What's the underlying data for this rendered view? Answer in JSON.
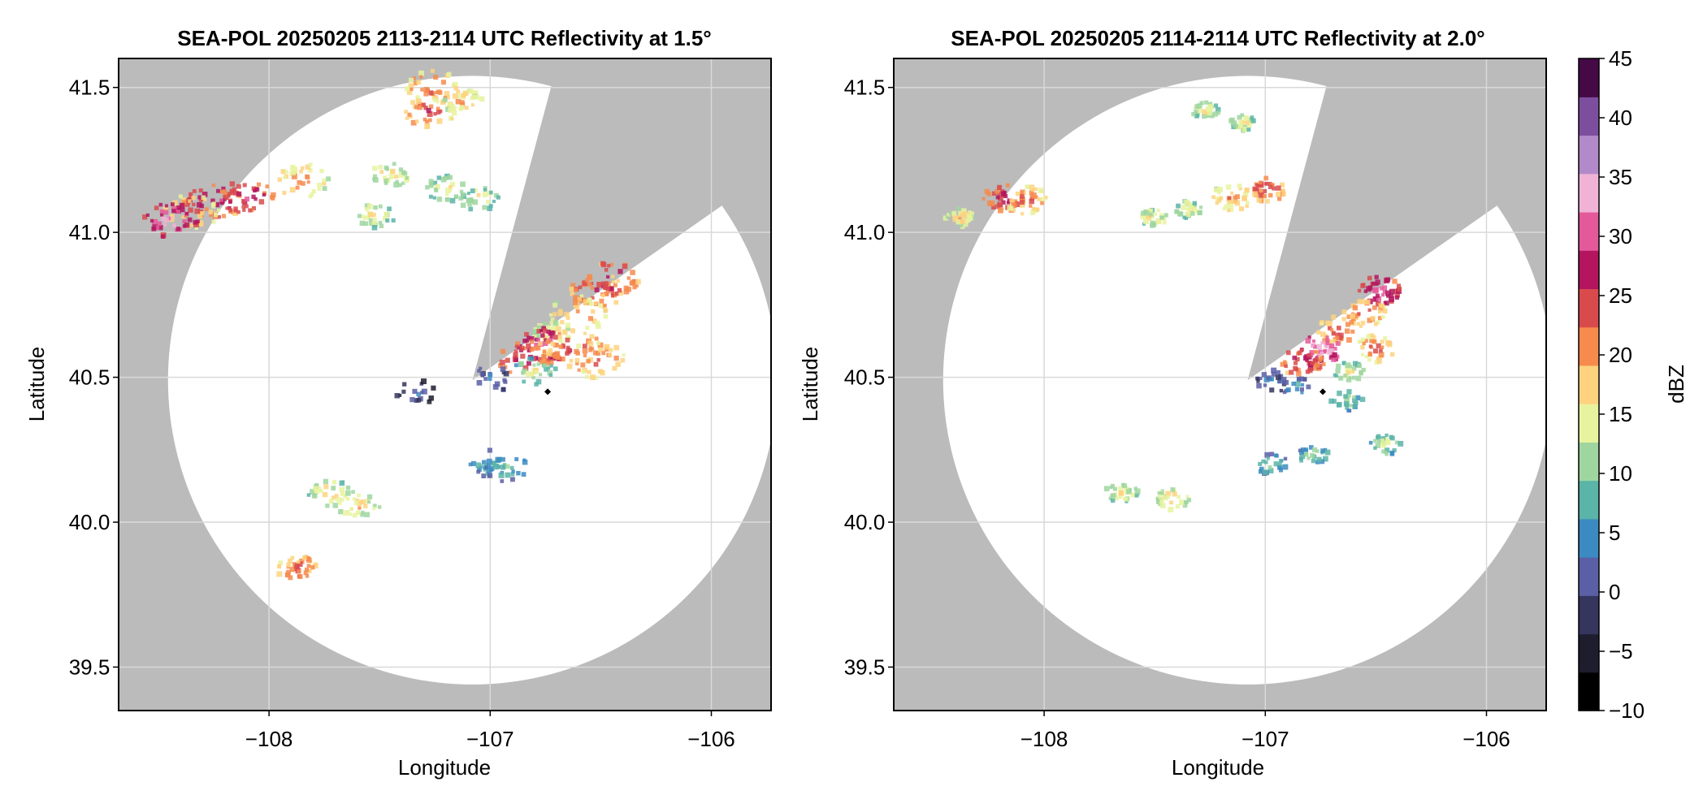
{
  "colors": {
    "background_mask": "#bbbbbb",
    "coverage": "#ffffff",
    "grid": "#d9d9d9",
    "site_marker": "#000000"
  },
  "chart_data": [
    {
      "type": "heatmap",
      "title": "SEA-POL 20250205 2113-2114 UTC Reflectivity at 1.5°",
      "xlabel": "Longitude",
      "ylabel": "Latitude",
      "xlim": [
        -108.68,
        -105.73
      ],
      "ylim": [
        39.35,
        41.6
      ],
      "xticks": [
        -108,
        -107,
        -106
      ],
      "xtick_labels": [
        "−108",
        "−107",
        "−106"
      ],
      "yticks": [
        39.5,
        40.0,
        40.5,
        41.0,
        41.5
      ],
      "ytick_labels": [
        "39.5",
        "40.0",
        "40.5",
        "41.0",
        "41.5"
      ],
      "grid": true,
      "radar_coverage": {
        "center": [
          -107.08,
          40.49
        ],
        "radius_lat": 1.05,
        "blanked_sector_bearings": [
          15,
          55
        ]
      },
      "site_marker": [
        -106.74,
        40.45
      ],
      "echoes": [
        {
          "lon": -107.27,
          "lat": 41.42,
          "dbz": 25
        },
        {
          "lon": -107.26,
          "lat": 41.5,
          "dbz": 24
        },
        {
          "lon": -107.12,
          "lat": 41.45,
          "dbz": 20
        },
        {
          "lon": -107.45,
          "lat": 41.2,
          "dbz": 18
        },
        {
          "lon": -107.2,
          "lat": 41.15,
          "dbz": 17
        },
        {
          "lon": -107.05,
          "lat": 41.12,
          "dbz": 16
        },
        {
          "lon": -107.52,
          "lat": 41.06,
          "dbz": 17
        },
        {
          "lon": -107.85,
          "lat": 41.18,
          "dbz": 22
        },
        {
          "lon": -108.25,
          "lat": 41.11,
          "dbz": 31
        },
        {
          "lon": -108.1,
          "lat": 41.12,
          "dbz": 29
        },
        {
          "lon": -108.35,
          "lat": 41.07,
          "dbz": 23
        },
        {
          "lon": -108.44,
          "lat": 41.04,
          "dbz": 34
        },
        {
          "lon": -106.52,
          "lat": 40.8,
          "dbz": 27
        },
        {
          "lon": -106.45,
          "lat": 40.84,
          "dbz": 28
        },
        {
          "lon": -106.6,
          "lat": 40.72,
          "dbz": 22
        },
        {
          "lon": -106.72,
          "lat": 40.65,
          "dbz": 19
        },
        {
          "lon": -106.75,
          "lat": 40.61,
          "dbz": 32
        },
        {
          "lon": -106.85,
          "lat": 40.57,
          "dbz": 27
        },
        {
          "lon": -106.62,
          "lat": 40.6,
          "dbz": 26
        },
        {
          "lon": -106.52,
          "lat": 40.56,
          "dbz": 24
        },
        {
          "lon": -106.8,
          "lat": 40.52,
          "dbz": 15
        },
        {
          "lon": -106.98,
          "lat": 40.5,
          "dbz": 6
        },
        {
          "lon": -107.33,
          "lat": 40.45,
          "dbz": 3
        },
        {
          "lon": -106.99,
          "lat": 40.2,
          "dbz": 10
        },
        {
          "lon": -106.93,
          "lat": 40.19,
          "dbz": 11
        },
        {
          "lon": -107.72,
          "lat": 40.1,
          "dbz": 18
        },
        {
          "lon": -107.6,
          "lat": 40.06,
          "dbz": 19
        },
        {
          "lon": -107.87,
          "lat": 39.84,
          "dbz": 25
        }
      ]
    },
    {
      "type": "heatmap",
      "title": "SEA-POL 20250205 2114-2114 UTC Reflectivity at 2.0°",
      "xlabel": "Longitude",
      "ylabel": "Latitude",
      "xlim": [
        -108.68,
        -105.73
      ],
      "ylim": [
        39.35,
        41.6
      ],
      "xticks": [
        -108,
        -107,
        -106
      ],
      "xtick_labels": [
        "−108",
        "−107",
        "−106"
      ],
      "yticks": [
        39.5,
        40.0,
        40.5,
        41.0,
        41.5
      ],
      "ytick_labels": [
        "39.5",
        "40.0",
        "40.5",
        "41.0",
        "41.5"
      ],
      "grid": true,
      "radar_coverage": {
        "center": [
          -107.08,
          40.49
        ],
        "radius_lat": 1.05,
        "blanked_sector_bearings": [
          15,
          55
        ]
      },
      "site_marker": [
        -106.74,
        40.45
      ],
      "echoes": [
        {
          "lon": -107.27,
          "lat": 41.42,
          "dbz": 18
        },
        {
          "lon": -107.1,
          "lat": 41.38,
          "dbz": 17
        },
        {
          "lon": -107.0,
          "lat": 41.15,
          "dbz": 26
        },
        {
          "lon": -107.15,
          "lat": 41.12,
          "dbz": 22
        },
        {
          "lon": -107.35,
          "lat": 41.08,
          "dbz": 17
        },
        {
          "lon": -107.5,
          "lat": 41.05,
          "dbz": 18
        },
        {
          "lon": -108.18,
          "lat": 41.12,
          "dbz": 28
        },
        {
          "lon": -108.08,
          "lat": 41.11,
          "dbz": 24
        },
        {
          "lon": -108.38,
          "lat": 41.05,
          "dbz": 20
        },
        {
          "lon": -106.48,
          "lat": 40.8,
          "dbz": 32
        },
        {
          "lon": -106.55,
          "lat": 40.72,
          "dbz": 24
        },
        {
          "lon": -106.67,
          "lat": 40.66,
          "dbz": 25
        },
        {
          "lon": -106.74,
          "lat": 40.6,
          "dbz": 35
        },
        {
          "lon": -106.83,
          "lat": 40.55,
          "dbz": 28
        },
        {
          "lon": -106.5,
          "lat": 40.6,
          "dbz": 23
        },
        {
          "lon": -106.62,
          "lat": 40.52,
          "dbz": 16
        },
        {
          "lon": -106.98,
          "lat": 40.49,
          "dbz": 6
        },
        {
          "lon": -106.87,
          "lat": 40.47,
          "dbz": 8
        },
        {
          "lon": -106.63,
          "lat": 40.42,
          "dbz": 13
        },
        {
          "lon": -106.97,
          "lat": 40.2,
          "dbz": 11
        },
        {
          "lon": -106.78,
          "lat": 40.23,
          "dbz": 12
        },
        {
          "lon": -106.45,
          "lat": 40.27,
          "dbz": 15
        },
        {
          "lon": -107.65,
          "lat": 40.1,
          "dbz": 17
        },
        {
          "lon": -107.42,
          "lat": 40.08,
          "dbz": 19
        }
      ]
    }
  ],
  "colorbar": {
    "label": "dBZ",
    "range": [
      -10,
      45
    ],
    "ticks": [
      -10,
      -5,
      0,
      5,
      10,
      15,
      20,
      25,
      30,
      35,
      40,
      45
    ],
    "tick_labels": [
      "−10",
      "−5",
      "0",
      "5",
      "10",
      "15",
      "20",
      "25",
      "30",
      "35",
      "40",
      "45"
    ],
    "colors": [
      "#000000",
      "#1d1d2e",
      "#35355d",
      "#5a5fa6",
      "#3b8bc2",
      "#5ab4a8",
      "#9fd6a0",
      "#e8f39f",
      "#fed27f",
      "#f68b4d",
      "#d94a4c",
      "#b3155e",
      "#e4599a",
      "#f0b3d6",
      "#b38ac9",
      "#7e4e9e",
      "#450a46"
    ]
  }
}
